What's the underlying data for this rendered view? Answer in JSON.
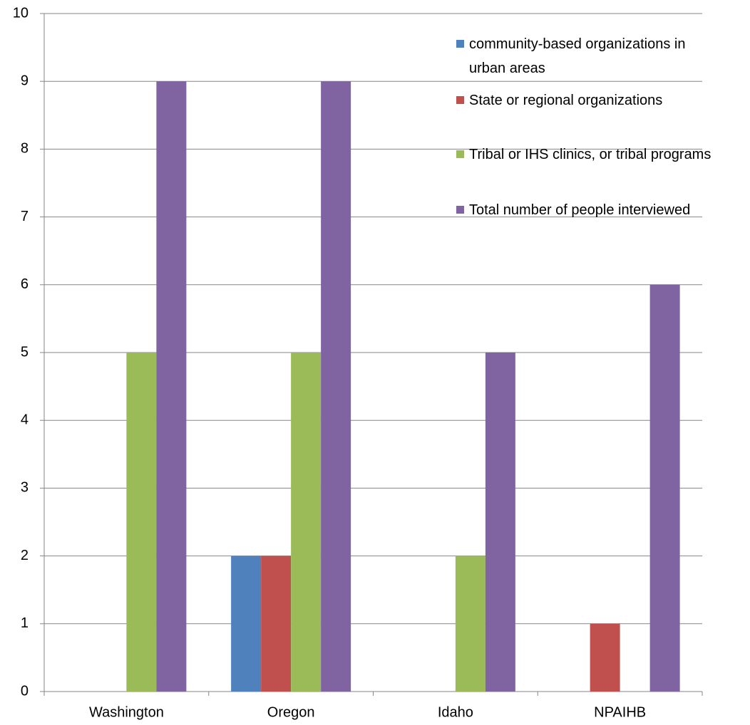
{
  "chart_data": {
    "type": "bar",
    "categories": [
      "Washington",
      "Oregon",
      "Idaho",
      "NPAIHB"
    ],
    "series": [
      {
        "name": "community-based organizations in urban areas",
        "color": "#4f81bd",
        "values": [
          0,
          2,
          0,
          0
        ]
      },
      {
        "name": "State or regional organizations",
        "color": "#c0504d",
        "values": [
          0,
          2,
          0,
          1
        ]
      },
      {
        "name": "Tribal or IHS clinics, or tribal programs",
        "color": "#9bbb59",
        "values": [
          5,
          5,
          2,
          0
        ]
      },
      {
        "name": "Total number of people interviewed",
        "color": "#8064a2",
        "values": [
          9,
          9,
          5,
          6
        ]
      }
    ],
    "ylim": [
      0,
      10
    ],
    "yticks": [
      0,
      1,
      2,
      3,
      4,
      5,
      6,
      7,
      8,
      9,
      10
    ],
    "grid": true,
    "legend": "upper right"
  }
}
